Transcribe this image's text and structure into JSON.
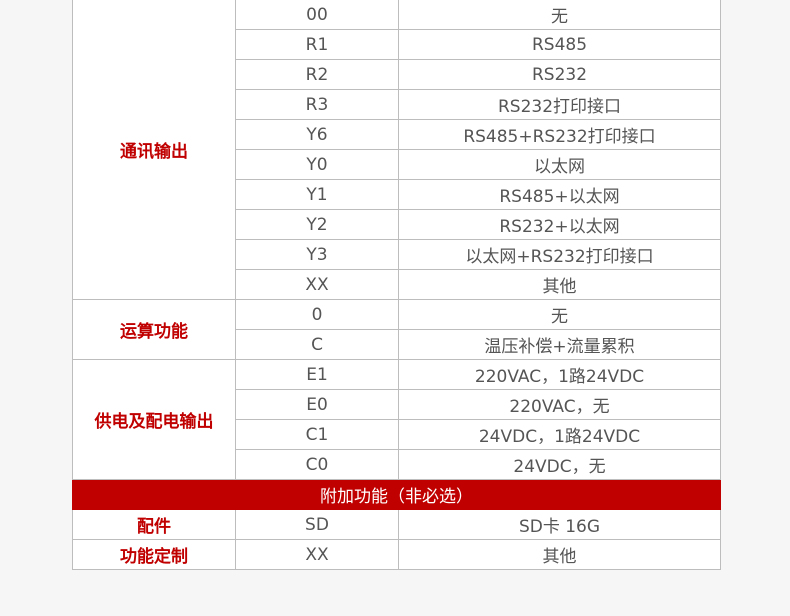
{
  "groups": [
    {
      "category": "通讯输出",
      "rows": [
        {
          "code": "00",
          "desc": "无"
        },
        {
          "code": "R1",
          "desc": "RS485"
        },
        {
          "code": "R2",
          "desc": "RS232"
        },
        {
          "code": "R3",
          "desc": "RS232打印接口"
        },
        {
          "code": "Y6",
          "desc": "RS485+RS232打印接口"
        },
        {
          "code": "Y0",
          "desc": "以太网"
        },
        {
          "code": "Y1",
          "desc": "RS485+以太网"
        },
        {
          "code": "Y2",
          "desc": "RS232+以太网"
        },
        {
          "code": "Y3",
          "desc": "以太网+RS232打印接口"
        },
        {
          "code": "XX",
          "desc": "其他"
        }
      ]
    },
    {
      "category": "运算功能",
      "rows": [
        {
          "code": "0",
          "desc": "无"
        },
        {
          "code": "C",
          "desc": "温压补偿+流量累积"
        }
      ]
    },
    {
      "category": "供电及配电输出",
      "rows": [
        {
          "code": "E1",
          "desc": "220VAC，1路24VDC"
        },
        {
          "code": "E0",
          "desc": "220VAC，无"
        },
        {
          "code": "C1",
          "desc": "24VDC，1路24VDC"
        },
        {
          "code": "C0",
          "desc": "24VDC，无"
        }
      ]
    }
  ],
  "section_header": "附加功能（非必选）",
  "extras": [
    {
      "category": "配件",
      "code": "SD",
      "desc": "SD卡 16G"
    },
    {
      "category": "功能定制",
      "code": "XX",
      "desc": "其他"
    }
  ],
  "colors": {
    "accent": "#c00000",
    "text": "#555555",
    "border": "#bdbdbd"
  }
}
